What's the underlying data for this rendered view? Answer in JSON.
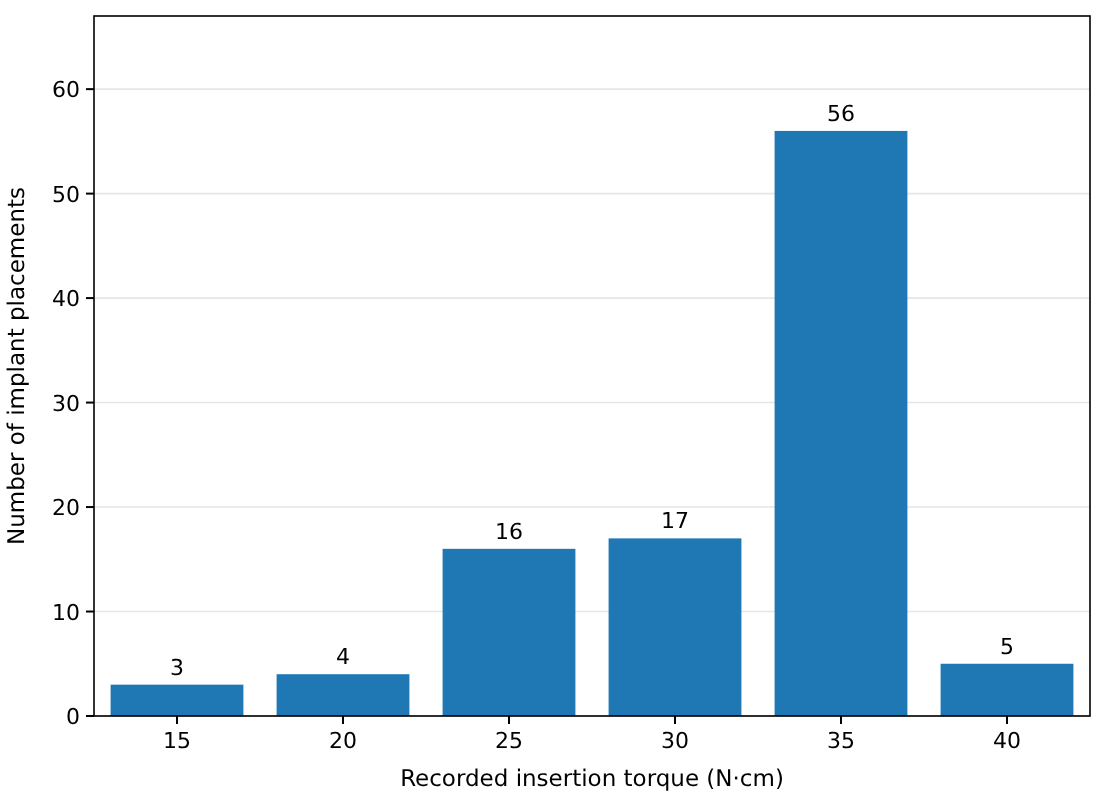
{
  "chart_data": {
    "type": "bar",
    "xlabel": "Recorded insertion torque (N·cm)",
    "ylabel": "Number of implant placements",
    "categories": [
      "15",
      "20",
      "25",
      "30",
      "35",
      "40"
    ],
    "values": [
      3,
      4,
      16,
      17,
      56,
      5
    ],
    "color": "#1f77b4",
    "ylim": [
      0,
      67
    ],
    "yticks": [
      0,
      10,
      20,
      30,
      40,
      50,
      60
    ],
    "grid": "y",
    "data_labels": true
  }
}
